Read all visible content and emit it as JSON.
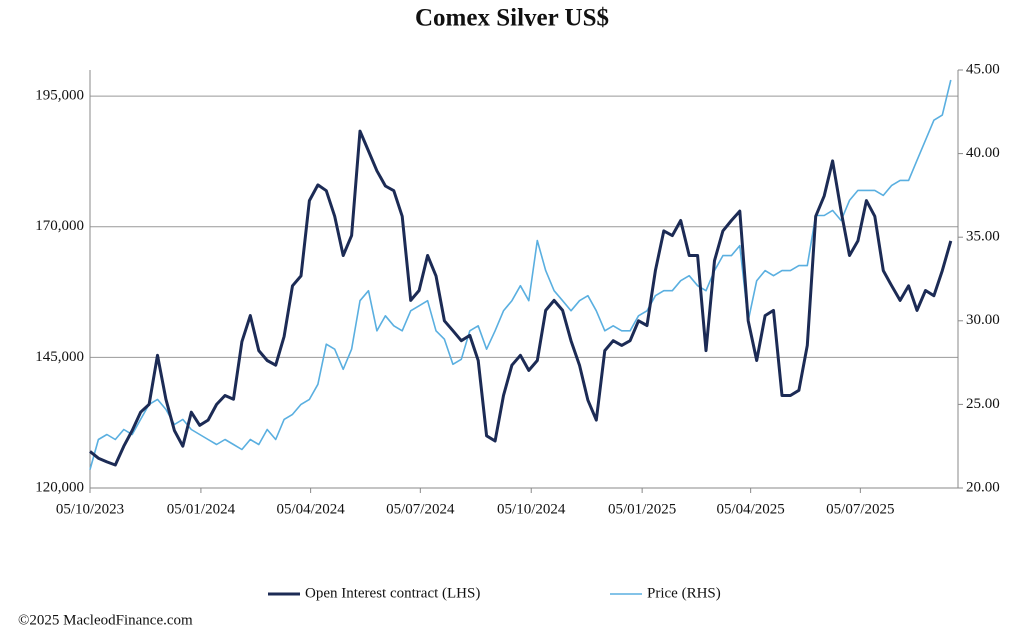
{
  "chart_data": {
    "type": "line",
    "title": "Comex Silver US$",
    "x": [
      "2023-10-05",
      "2023-10-12",
      "2023-10-19",
      "2023-10-26",
      "2023-11-02",
      "2023-11-09",
      "2023-11-16",
      "2023-11-23",
      "2023-11-30",
      "2023-12-07",
      "2023-12-14",
      "2023-12-21",
      "2023-12-28",
      "2024-01-04",
      "2024-01-11",
      "2024-01-18",
      "2024-01-25",
      "2024-02-01",
      "2024-02-08",
      "2024-02-15",
      "2024-02-22",
      "2024-02-29",
      "2024-03-07",
      "2024-03-14",
      "2024-03-21",
      "2024-03-28",
      "2024-04-04",
      "2024-04-11",
      "2024-04-18",
      "2024-04-25",
      "2024-05-02",
      "2024-05-09",
      "2024-05-16",
      "2024-05-23",
      "2024-05-30",
      "2024-06-06",
      "2024-06-13",
      "2024-06-20",
      "2024-06-27",
      "2024-07-04",
      "2024-07-11",
      "2024-07-18",
      "2024-07-25",
      "2024-08-01",
      "2024-08-08",
      "2024-08-15",
      "2024-08-22",
      "2024-08-29",
      "2024-09-05",
      "2024-09-12",
      "2024-09-19",
      "2024-09-26",
      "2024-10-03",
      "2024-10-10",
      "2024-10-17",
      "2024-10-24",
      "2024-10-31",
      "2024-11-07",
      "2024-11-14",
      "2024-11-21",
      "2024-11-28",
      "2024-12-05",
      "2024-12-12",
      "2024-12-19",
      "2024-12-26",
      "2025-01-02",
      "2025-01-09",
      "2025-01-16",
      "2025-01-23",
      "2025-01-30",
      "2025-02-06",
      "2025-02-13",
      "2025-02-20",
      "2025-02-27",
      "2025-03-06",
      "2025-03-13",
      "2025-03-20",
      "2025-03-27",
      "2025-04-03",
      "2025-04-10",
      "2025-04-17",
      "2025-04-24",
      "2025-05-01",
      "2025-05-08",
      "2025-05-15",
      "2025-05-22",
      "2025-05-29",
      "2025-06-05",
      "2025-06-12",
      "2025-06-19",
      "2025-06-26",
      "2025-07-03",
      "2025-07-10",
      "2025-07-17",
      "2025-07-24",
      "2025-07-31",
      "2025-08-07",
      "2025-08-14",
      "2025-08-21",
      "2025-08-28",
      "2025-09-04",
      "2025-09-11",
      "2025-09-18"
    ],
    "series": [
      {
        "name": "Open Interest contract (LHS)",
        "color": "#1c2b55",
        "axis": "y",
        "values": [
          127000,
          125700,
          125000,
          124400,
          128000,
          131000,
          134500,
          136000,
          145400,
          137000,
          131000,
          128000,
          134500,
          132000,
          133000,
          136000,
          137700,
          137000,
          148000,
          153000,
          146300,
          144400,
          143500,
          149000,
          158700,
          160600,
          175000,
          178000,
          176900,
          172000,
          164500,
          168300,
          188300,
          184500,
          180700,
          177800,
          176900,
          172000,
          155900,
          157800,
          164500,
          160600,
          152000,
          150100,
          148200,
          149200,
          144400,
          130000,
          129000,
          137700,
          143500,
          145400,
          142500,
          144400,
          154000,
          155900,
          154000,
          148200,
          143500,
          136800,
          133000,
          146300,
          148200,
          147300,
          148200,
          152000,
          151100,
          161600,
          169200,
          168300,
          171200,
          164500,
          164500,
          146300,
          163500,
          169200,
          171200,
          173000,
          152000,
          144400,
          153000,
          154000,
          137700,
          137700,
          138700,
          147300,
          172000,
          175900,
          182600,
          173000,
          164500,
          167300,
          175000,
          172000,
          161600,
          158700,
          155900,
          158700,
          154000,
          157800,
          156800,
          161600,
          167300
        ]
      },
      {
        "name": "Price (RHS)",
        "color": "#5aafe0",
        "axis": "y2",
        "values": [
          21.1,
          22.9,
          23.2,
          22.9,
          23.5,
          23.2,
          24.1,
          25.0,
          25.3,
          24.7,
          23.8,
          24.1,
          23.5,
          23.2,
          22.9,
          22.6,
          22.9,
          22.6,
          22.3,
          22.9,
          22.6,
          23.5,
          22.9,
          24.1,
          24.4,
          25.0,
          25.3,
          26.2,
          28.6,
          28.3,
          27.1,
          28.3,
          31.2,
          31.8,
          29.4,
          30.3,
          29.7,
          29.4,
          30.6,
          30.9,
          31.2,
          29.4,
          28.9,
          27.4,
          27.7,
          29.4,
          29.7,
          28.3,
          29.4,
          30.6,
          31.2,
          32.1,
          31.2,
          34.8,
          33.0,
          31.8,
          31.2,
          30.6,
          31.2,
          31.5,
          30.6,
          29.4,
          29.7,
          29.4,
          29.4,
          30.3,
          30.6,
          31.5,
          31.8,
          31.8,
          32.4,
          32.7,
          32.1,
          31.8,
          33.0,
          33.9,
          33.9,
          34.5,
          30.0,
          32.4,
          33.0,
          32.7,
          33.0,
          33.0,
          33.3,
          33.3,
          36.3,
          36.3,
          36.6,
          36.0,
          37.2,
          37.8,
          37.8,
          37.8,
          37.5,
          38.1,
          38.4,
          38.4,
          39.6,
          40.8,
          42.0,
          42.3,
          44.4
        ]
      }
    ],
    "xlim": [
      "2023-10-05",
      "2025-09-24"
    ],
    "xticks": [
      {
        "value": "2023-10-05",
        "label": "05/10/2023"
      },
      {
        "value": "2024-01-05",
        "label": "05/01/2024"
      },
      {
        "value": "2024-04-05",
        "label": "05/04/2024"
      },
      {
        "value": "2024-07-05",
        "label": "05/07/2024"
      },
      {
        "value": "2024-10-05",
        "label": "05/10/2024"
      },
      {
        "value": "2025-01-05",
        "label": "05/01/2025"
      },
      {
        "value": "2025-04-05",
        "label": "05/04/2025"
      },
      {
        "value": "2025-07-05",
        "label": "05/07/2025"
      }
    ],
    "ylim": [
      120000,
      200000
    ],
    "yticks": [
      {
        "value": 120000,
        "label": "120,000"
      },
      {
        "value": 145000,
        "label": "145,000"
      },
      {
        "value": 170000,
        "label": "170,000"
      },
      {
        "value": 195000,
        "label": "195,000"
      }
    ],
    "y2lim": [
      20,
      45
    ],
    "y2ticks": [
      {
        "value": 20,
        "label": "20.00"
      },
      {
        "value": 25,
        "label": "25.00"
      },
      {
        "value": 30,
        "label": "30.00"
      },
      {
        "value": 35,
        "label": "35.00"
      },
      {
        "value": 40,
        "label": "40.00"
      },
      {
        "value": 45,
        "label": "45.00"
      }
    ],
    "grid": true,
    "legend": "bottom"
  },
  "footer": "©2025 MacleodFinance.com"
}
